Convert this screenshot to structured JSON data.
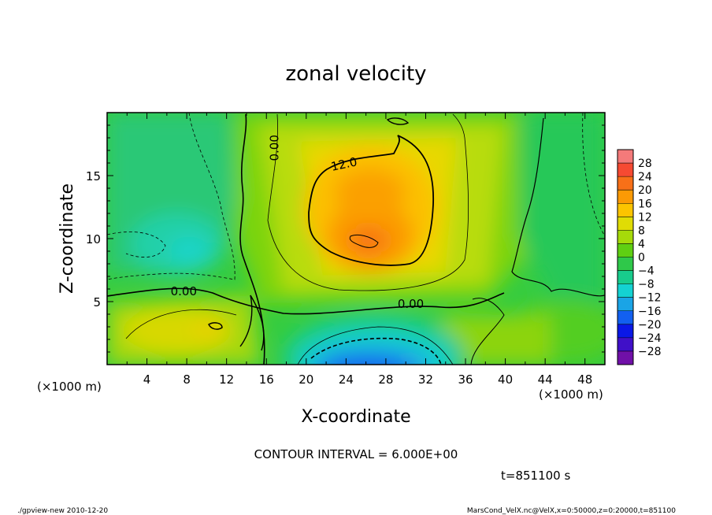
{
  "chart_data": {
    "type": "heatmap",
    "title": "zonal velocity",
    "xlabel": "X-coordinate",
    "ylabel": "Z-coordinate",
    "x_unit_label": "(×1000 m)",
    "x_unit_label_right": "(×1000 m)",
    "xlim": [
      0,
      50
    ],
    "ylim": [
      0,
      20
    ],
    "x_ticks": [
      "4",
      "8",
      "12",
      "16",
      "20",
      "24",
      "28",
      "32",
      "36",
      "40",
      "44",
      "48"
    ],
    "y_ticks": [
      "5",
      "10",
      "15"
    ],
    "colorbar": {
      "labels": [
        "28",
        "24",
        "20",
        "16",
        "12",
        "8",
        "4",
        "0",
        "−4",
        "−8",
        "−12",
        "−16",
        "−20",
        "−24",
        "−28"
      ],
      "colors": [
        "#f47a7a",
        "#f64a32",
        "#f87018",
        "#fb9a05",
        "#fcc400",
        "#e0dc05",
        "#a6da0a",
        "#5fcf12",
        "#2fc84a",
        "#18cc8c",
        "#14d2d2",
        "#1aa4e6",
        "#1260f0",
        "#0a18e6",
        "#4010c8",
        "#7010a8"
      ]
    },
    "contour_labels": [
      {
        "text": "0.00",
        "x": 16.8,
        "z": 17.2,
        "rotate": -90
      },
      {
        "text": "12.0",
        "x": 23.8,
        "z": 15.9,
        "rotate": -12
      },
      {
        "text": "0.00",
        "x": 7.7,
        "z": 5.8,
        "rotate": 0
      },
      {
        "text": "0.00",
        "x": 30.5,
        "z": 4.8,
        "rotate": 0
      }
    ],
    "contour_interval": "CONTOUR INTERVAL = 6.000E+00",
    "time_label": "t=851100 s"
  },
  "footer": {
    "left": "./gpview-new  2010-12-20",
    "right": "MarsCond_VelX.nc@VelX,x=0:50000,z=0:20000,t=851100"
  }
}
